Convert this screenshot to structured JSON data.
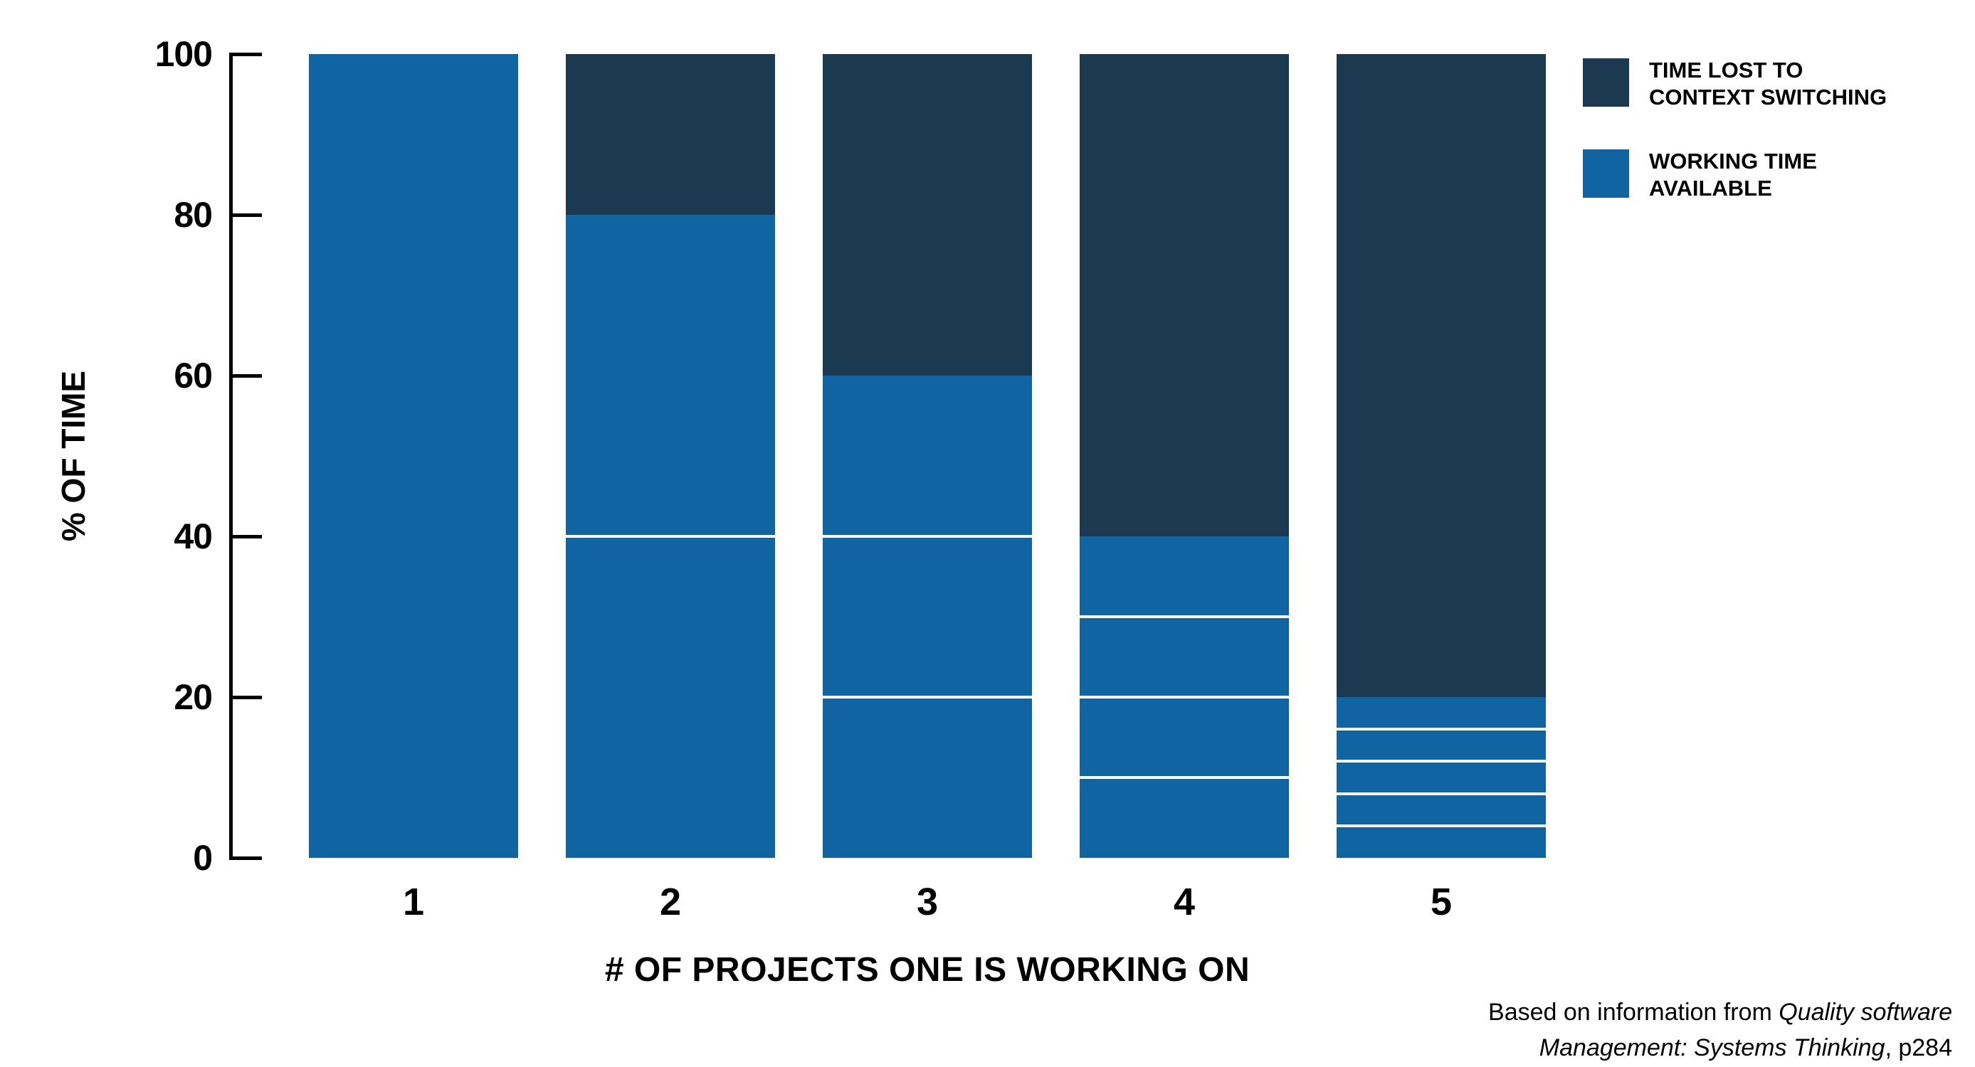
{
  "chart_data": {
    "type": "bar",
    "stacked": true,
    "title": "",
    "xlabel": "# OF PROJECTS ONE IS WORKING ON",
    "ylabel": "% OF TIME",
    "categories": [
      "1",
      "2",
      "3",
      "4",
      "5"
    ],
    "series": [
      {
        "name": "WORKING TIME AVAILABLE",
        "values": [
          100,
          80,
          60,
          40,
          20
        ],
        "color": "#1064A1"
      },
      {
        "name": "TIME LOST TO CONTEXT SWITCHING",
        "values": [
          0,
          20,
          40,
          60,
          80
        ],
        "color": "#1B3A52"
      }
    ],
    "working_time_segments": [
      [
        100
      ],
      [
        40,
        40
      ],
      [
        20,
        20,
        20
      ],
      [
        10,
        10,
        10,
        10
      ],
      [
        4,
        4,
        4,
        4,
        4
      ]
    ],
    "segment_separator_color": "#FFFFFF",
    "ylim": [
      0,
      100
    ],
    "yticks": [
      0,
      20,
      40,
      60,
      80,
      100
    ],
    "grid": false,
    "legend_position": "top-right",
    "axis_color": "#000000"
  },
  "legend": {
    "items": [
      {
        "label_lines": [
          "TIME LOST TO",
          "CONTEXT SWITCHING"
        ],
        "color": "#1B3A52"
      },
      {
        "label_lines": [
          "WORKING TIME",
          "AVAILABLE"
        ],
        "color": "#1064A1"
      }
    ]
  },
  "attribution": {
    "line1_regular": "Based on information from ",
    "line1_italic": "Quality software",
    "line2_italic": "Management: Systems Thinking",
    "line2_regular": ", p284"
  }
}
